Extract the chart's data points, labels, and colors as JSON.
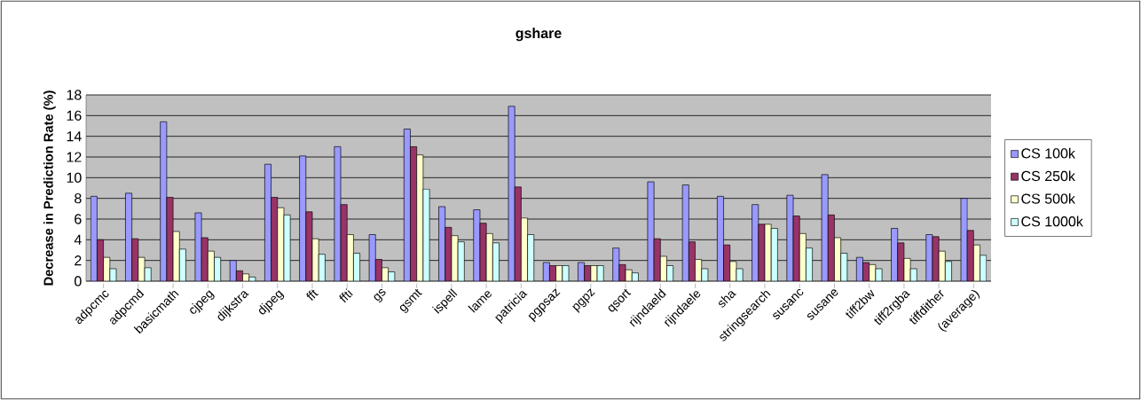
{
  "chart_data": {
    "type": "bar",
    "title": "gshare",
    "ylabel": "Decrease in Prediction Rate (%)",
    "categories": [
      "adpcmc",
      "adpcmd",
      "basicmath",
      "cjpeg",
      "dijkstra",
      "djpeg",
      "fft",
      "ffti",
      "gs",
      "gsmt",
      "ispell",
      "lame",
      "patricia",
      "pgpsaz",
      "pgpz",
      "qsort",
      "rijndaeld",
      "rijndaele",
      "sha",
      "stringsearch",
      "susanc",
      "susane",
      "tiff2bw",
      "tiff2rgba",
      "tiffdither",
      "(average)"
    ],
    "series": [
      {
        "name": "CS 100k",
        "color": "#9999ff",
        "values": [
          8.2,
          8.5,
          15.4,
          6.6,
          2.0,
          11.3,
          12.1,
          13.0,
          4.5,
          14.7,
          7.2,
          6.9,
          16.9,
          1.8,
          1.8,
          3.2,
          9.6,
          9.3,
          8.2,
          7.4,
          8.3,
          10.3,
          2.3,
          5.1,
          4.5,
          8.0
        ]
      },
      {
        "name": "CS 250k",
        "color": "#993366",
        "values": [
          4.0,
          4.1,
          8.1,
          4.2,
          1.0,
          8.1,
          6.7,
          7.4,
          2.1,
          13.0,
          5.2,
          5.6,
          9.1,
          1.5,
          1.5,
          1.6,
          4.1,
          3.8,
          3.5,
          5.5,
          6.3,
          6.4,
          1.8,
          3.7,
          4.3,
          4.9
        ]
      },
      {
        "name": "CS 500k",
        "color": "#ffffcc",
        "values": [
          2.3,
          2.3,
          4.8,
          2.9,
          0.7,
          7.1,
          4.1,
          4.5,
          1.3,
          12.2,
          4.4,
          4.6,
          6.1,
          1.5,
          1.5,
          1.1,
          2.4,
          2.1,
          1.9,
          5.5,
          4.6,
          4.2,
          1.6,
          2.2,
          2.9,
          3.5
        ]
      },
      {
        "name": "CS 1000k",
        "color": "#ccffff",
        "values": [
          1.2,
          1.3,
          3.1,
          2.3,
          0.4,
          6.4,
          2.6,
          2.7,
          0.9,
          8.9,
          3.8,
          3.7,
          4.5,
          1.5,
          1.5,
          0.8,
          1.5,
          1.2,
          1.2,
          5.1,
          3.2,
          2.7,
          1.2,
          1.2,
          1.9,
          2.5
        ]
      }
    ],
    "ylim": [
      0,
      18
    ],
    "yticks": [
      0,
      2,
      4,
      6,
      8,
      10,
      12,
      14,
      16,
      18
    ],
    "grid": "y",
    "legend": "right"
  }
}
